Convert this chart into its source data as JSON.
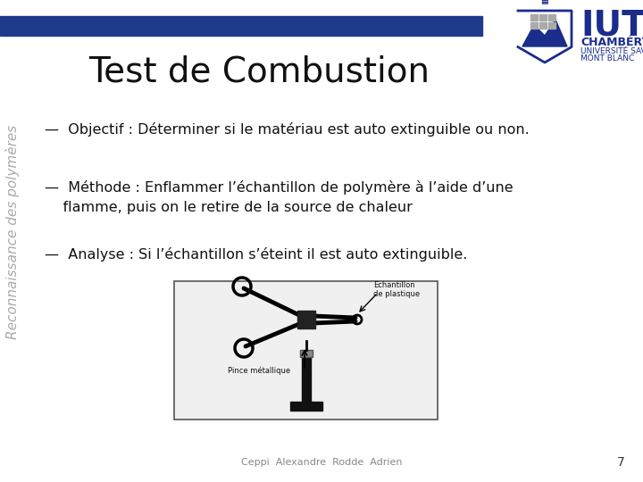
{
  "bg_color": "#ffffff",
  "header_bar_color": "#1f3a8a",
  "title": "Test de Combustion",
  "title_color": "#111111",
  "title_fontsize": 28,
  "side_text": "Reconnaissance des polymères",
  "side_text_color": "#aaaaaa",
  "side_fontsize": 11,
  "bullet1": "—  Objectif : Déterminer si le matériau est auto extinguible ou non.",
  "bullet2_line1": "—  Méthode : Enflammer l’échantillon de polymère à l’aide d’une",
  "bullet2_line2": "    flamme, puis on le retire de la source de chaleur",
  "bullet3": "—  Analyse : Si l’échantillon s’éteint il est auto extinguible.",
  "bullet_fontsize": 11.5,
  "bullet_color": "#111111",
  "footer_text": "Ceppi  Alexandre  Rodde  Adrien",
  "footer_fontsize": 8,
  "footer_color": "#888888",
  "page_num": "7",
  "page_num_fontsize": 10,
  "page_num_color": "#333333",
  "iut_text_color": "#1a2d8a",
  "chambery_color": "#1a2d8a"
}
